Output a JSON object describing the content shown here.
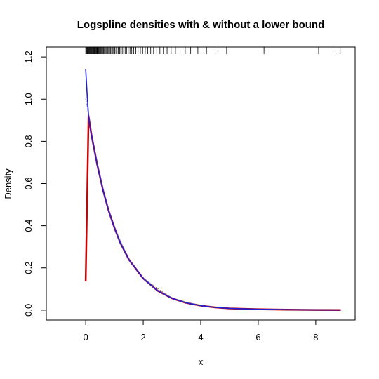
{
  "chart_data": {
    "type": "line",
    "title": "Logspline densities with & without a lower bound",
    "xlabel": "x",
    "ylabel": "Density",
    "xlim": [
      -1.37,
      9.37
    ],
    "ylim": [
      -0.047,
      1.247
    ],
    "xticks": [
      0,
      2,
      4,
      6,
      8
    ],
    "yticks": [
      0.0,
      0.2,
      0.4,
      0.6,
      0.8,
      1.0,
      1.2
    ],
    "ytick_labels": [
      "0.0",
      "0.2",
      "0.4",
      "0.6",
      "0.8",
      "1.0",
      "1.2"
    ],
    "grid": false,
    "series": [
      {
        "color": "#cc0000",
        "width": 2.5,
        "style": "solid",
        "x": [
          0.0,
          0.1,
          0.2,
          0.3,
          0.4,
          0.5,
          0.6,
          0.8,
          1.0,
          1.2,
          1.5,
          2.0,
          2.5,
          3.0,
          3.5,
          4.0,
          4.5,
          5.0,
          6.0,
          7.0,
          8.0,
          8.85
        ],
        "y": [
          0.14,
          0.92,
          0.83,
          0.76,
          0.69,
          0.63,
          0.57,
          0.47,
          0.39,
          0.32,
          0.24,
          0.15,
          0.092,
          0.056,
          0.034,
          0.021,
          0.013,
          0.008,
          0.004,
          0.002,
          0.001,
          0.0005
        ]
      },
      {
        "color": "#888888",
        "width": 1.2,
        "style": "dashed",
        "x": [
          0.0,
          0.05,
          0.1,
          0.15,
          0.2,
          0.3,
          0.5,
          0.8,
          1.0,
          1.5,
          2.0,
          3.0,
          4.0,
          5.0,
          6.0,
          8.85
        ],
        "y": [
          1.0,
          0.97,
          0.92,
          0.87,
          0.83,
          0.76,
          0.63,
          0.47,
          0.39,
          0.24,
          0.15,
          0.056,
          0.021,
          0.008,
          0.004,
          0.0005
        ]
      },
      {
        "color": "#1f1fd6",
        "width": 1.6,
        "style": "solid",
        "x": [
          0.0,
          0.05,
          0.1,
          0.15,
          0.2,
          0.3,
          0.4,
          0.5,
          0.6,
          0.8,
          1.0,
          1.2,
          1.5,
          2.0,
          2.5,
          3.0,
          3.5,
          4.0,
          4.5,
          5.0,
          6.0,
          7.0,
          8.0,
          8.85
        ],
        "y": [
          1.14,
          1.02,
          0.92,
          0.87,
          0.83,
          0.76,
          0.69,
          0.63,
          0.57,
          0.47,
          0.39,
          0.32,
          0.24,
          0.15,
          0.092,
          0.056,
          0.034,
          0.021,
          0.013,
          0.008,
          0.004,
          0.002,
          0.001,
          0.0005
        ]
      }
    ],
    "rug": [
      0.0,
      0.02,
      0.03,
      0.05,
      0.07,
      0.08,
      0.1,
      0.12,
      0.13,
      0.15,
      0.17,
      0.19,
      0.21,
      0.23,
      0.25,
      0.27,
      0.29,
      0.31,
      0.33,
      0.35,
      0.37,
      0.39,
      0.41,
      0.43,
      0.45,
      0.47,
      0.5,
      0.52,
      0.55,
      0.57,
      0.6,
      0.62,
      0.65,
      0.68,
      0.71,
      0.74,
      0.77,
      0.8,
      0.83,
      0.86,
      0.9,
      0.93,
      0.97,
      1.01,
      1.05,
      1.09,
      1.13,
      1.18,
      1.22,
      1.27,
      1.32,
      1.37,
      1.42,
      1.48,
      1.54,
      1.6,
      1.67,
      1.74,
      1.82,
      1.9,
      1.98,
      2.07,
      2.16,
      2.26,
      2.36,
      2.47,
      2.58,
      2.7,
      2.83,
      2.97,
      3.12,
      3.28,
      3.46,
      3.65,
      3.9,
      4.2,
      4.6,
      4.9,
      6.2,
      8.1,
      8.6,
      8.85
    ]
  }
}
